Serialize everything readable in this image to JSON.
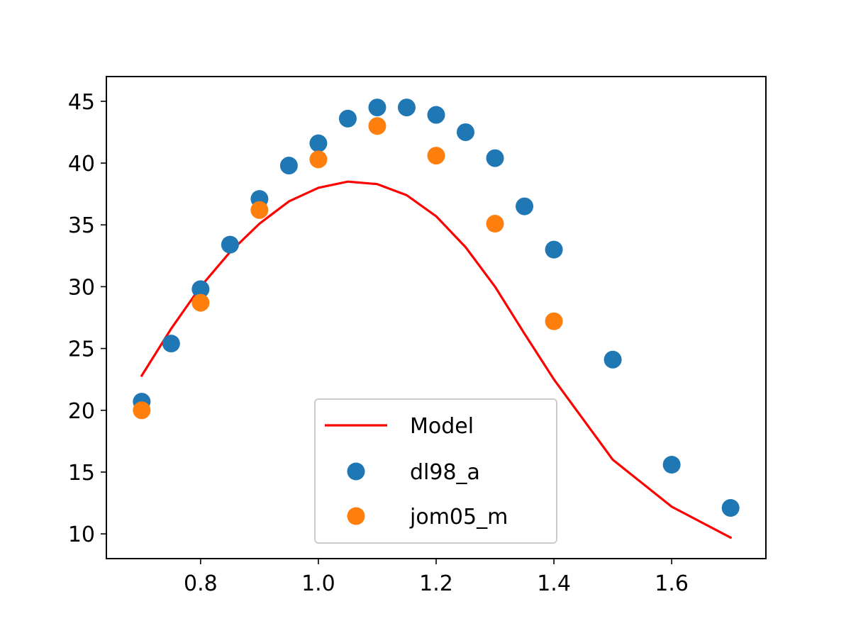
{
  "chart_data": {
    "type": "scatter",
    "title": "",
    "xlabel": "",
    "ylabel": "",
    "xlim": [
      0.64,
      1.76
    ],
    "ylim": [
      8.0,
      47.0
    ],
    "xticks": [
      "0.8",
      "1.0",
      "1.2",
      "1.4",
      "1.6"
    ],
    "yticks": [
      "10",
      "15",
      "20",
      "25",
      "30",
      "35",
      "40",
      "45"
    ],
    "grid": false,
    "legend_position": "lower-center",
    "series": [
      {
        "name": "Model",
        "kind": "line",
        "color": "#ff0000",
        "x": [
          0.7,
          0.75,
          0.8,
          0.85,
          0.9,
          0.95,
          1.0,
          1.05,
          1.1,
          1.15,
          1.2,
          1.25,
          1.3,
          1.35,
          1.4,
          1.5,
          1.6,
          1.7
        ],
        "y": [
          22.8,
          26.6,
          30.0,
          32.8,
          35.1,
          36.9,
          38.0,
          38.5,
          38.3,
          37.4,
          35.7,
          33.2,
          30.0,
          26.2,
          22.5,
          16.0,
          12.2,
          9.7
        ]
      },
      {
        "name": "dl98_a",
        "kind": "scatter",
        "color": "#1f77b4",
        "x": [
          0.7,
          0.75,
          0.8,
          0.85,
          0.9,
          0.95,
          1.0,
          1.05,
          1.1,
          1.15,
          1.2,
          1.25,
          1.3,
          1.35,
          1.4,
          1.5,
          1.6,
          1.7
        ],
        "y": [
          20.7,
          25.4,
          29.8,
          33.4,
          37.1,
          39.8,
          41.6,
          43.6,
          44.5,
          44.5,
          43.9,
          42.5,
          40.4,
          36.5,
          33.0,
          24.1,
          15.6,
          12.1
        ]
      },
      {
        "name": "jom05_m",
        "kind": "scatter",
        "color": "#ff7f0e",
        "x": [
          0.7,
          0.8,
          0.9,
          1.0,
          1.1,
          1.2,
          1.3,
          1.4
        ],
        "y": [
          20.0,
          28.7,
          36.2,
          40.3,
          43.0,
          40.6,
          35.1,
          27.2
        ]
      }
    ]
  }
}
